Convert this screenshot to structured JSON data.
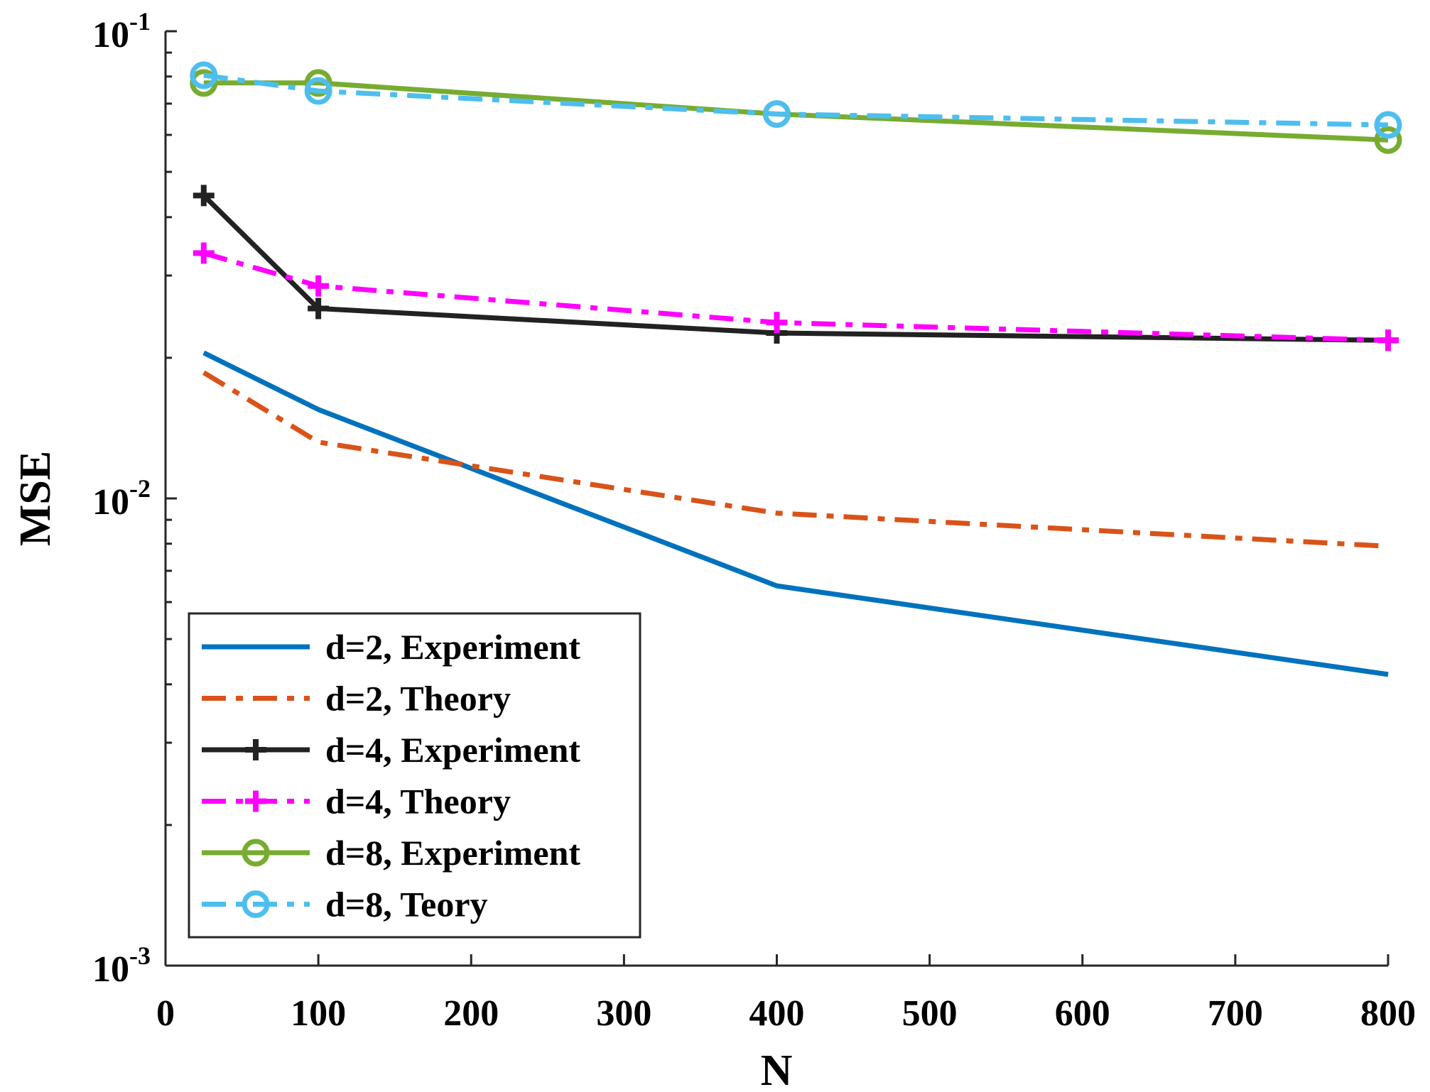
{
  "chart_data": {
    "type": "line",
    "title": "",
    "xlabel": "N",
    "ylabel": "MSE",
    "xscale": "linear",
    "yscale": "log",
    "xlim": [
      0,
      800
    ],
    "ylim": [
      0.001,
      0.1
    ],
    "xticks": [
      0,
      100,
      200,
      300,
      400,
      500,
      600,
      700,
      800
    ],
    "xtick_labels": [
      "0",
      "100",
      "200",
      "300",
      "400",
      "500",
      "600",
      "700",
      "800"
    ],
    "yticks": [
      0.001,
      0.01,
      0.1
    ],
    "ytick_labels": [
      {
        "base": "10",
        "exp": "-3"
      },
      {
        "base": "10",
        "exp": "-2"
      },
      {
        "base": "10",
        "exp": "-1"
      }
    ],
    "grid": false,
    "legend_position": "bottom-left",
    "x": [
      25,
      100,
      400,
      800
    ],
    "series": [
      {
        "name": "d=2, Experiment",
        "values": [
          0.0205,
          0.0155,
          0.0065,
          0.0042
        ],
        "color": "#0072BD",
        "dash": "solid",
        "marker": "none"
      },
      {
        "name": "d=2, Theory",
        "values": [
          0.0186,
          0.0132,
          0.0093,
          0.0079
        ],
        "color": "#D95319",
        "dash": "dashdot",
        "marker": "none"
      },
      {
        "name": "d=4, Experiment",
        "values": [
          0.0445,
          0.0255,
          0.0226,
          0.0218
        ],
        "color": "#222222",
        "dash": "solid",
        "marker": "plus"
      },
      {
        "name": "d=4, Theory",
        "values": [
          0.0335,
          0.0285,
          0.0238,
          0.0218
        ],
        "color": "#FF00FF",
        "dash": "dashdot",
        "marker": "plus"
      },
      {
        "name": "d=8, Experiment",
        "values": [
          0.0775,
          0.0775,
          0.0665,
          0.0585
        ],
        "color": "#77AC30",
        "dash": "solid",
        "marker": "circle"
      },
      {
        "name": "d=8, Teory",
        "values": [
          0.0805,
          0.0745,
          0.0665,
          0.063
        ],
        "color": "#4DBEEE",
        "dash": "dashdot",
        "marker": "circle"
      }
    ]
  }
}
